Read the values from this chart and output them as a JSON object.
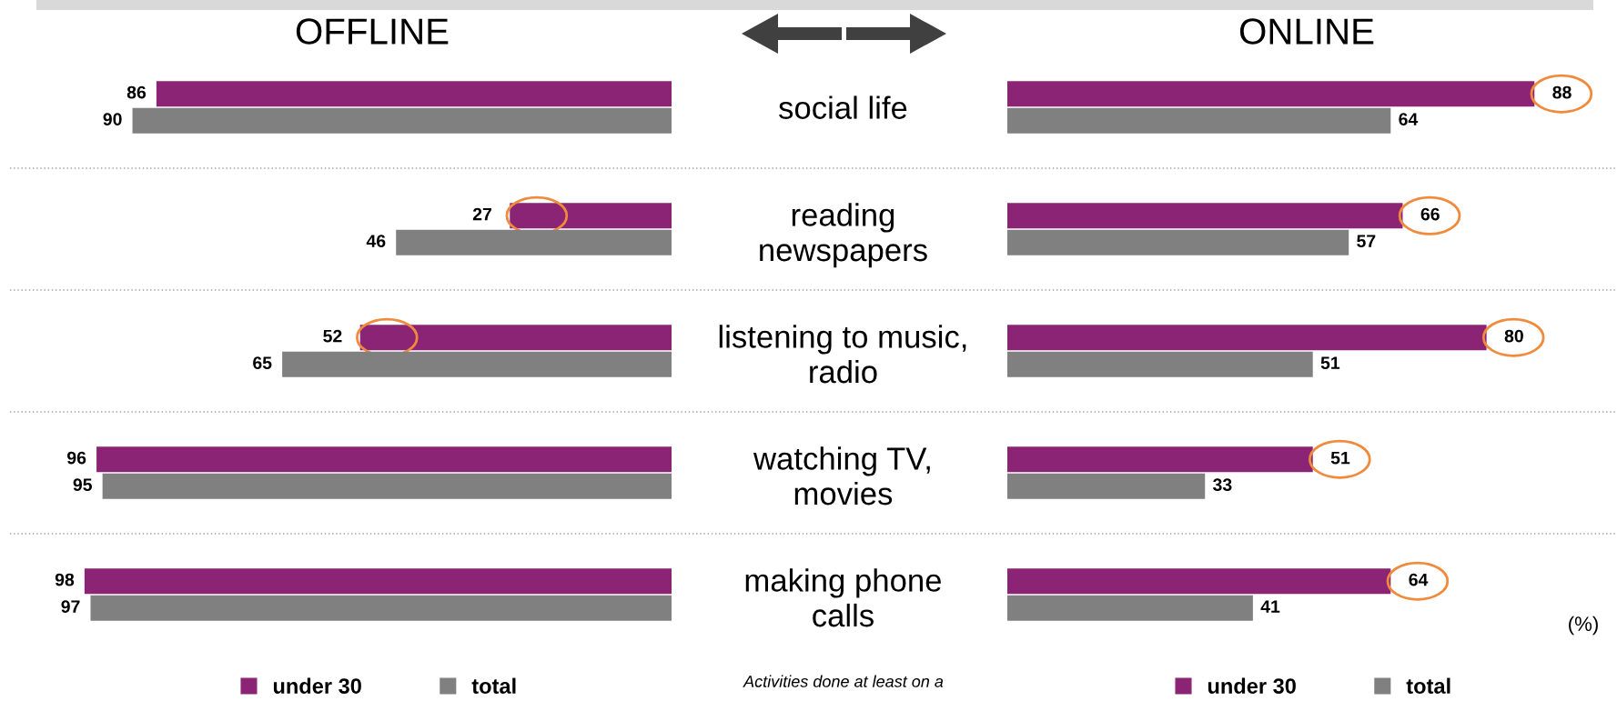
{
  "chart_data": [
    {
      "type": "bar",
      "orientation": "horizontal",
      "title": "OFFLINE",
      "categories": [
        null,
        null,
        null,
        null,
        null
      ],
      "series": [
        {
          "name": "under 30",
          "color": "#8b2474",
          "values": [
            86,
            27,
            52,
            96,
            98
          ]
        },
        {
          "name": "total",
          "color": "#808080",
          "values": [
            90,
            46,
            65,
            95,
            97
          ]
        }
      ],
      "data_labels": true,
      "legend": "bottom",
      "tick_labels": false,
      "grid": false
    },
    {
      "type": "bar",
      "orientation": "horizontal",
      "title": "ONLINE",
      "categories": [
        "social life",
        "reading\nnewspapers",
        "listening to music,\nradio",
        "watching TV,\nmovies",
        "making phone\ncalls"
      ],
      "series": [
        {
          "name": "under 30",
          "color": "#8b2474",
          "values": [
            88,
            66,
            80,
            51,
            64
          ]
        },
        {
          "name": "total",
          "color": "#808080",
          "values": [
            64,
            57,
            51,
            33,
            41
          ]
        }
      ],
      "data_labels": true,
      "legend": "bottom",
      "tick_labels": "y",
      "grid": false,
      "annotations": [
        "(%)",
        "Activities done at least on a"
      ]
    }
  ]
}
